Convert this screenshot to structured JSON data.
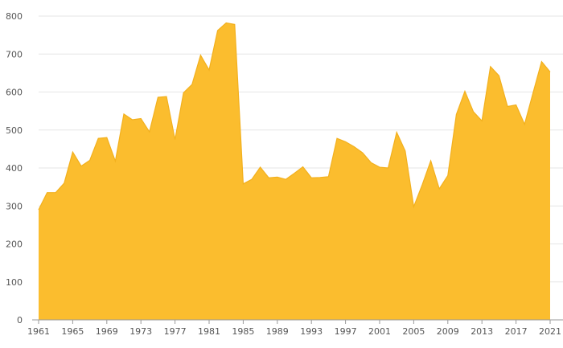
{
  "chart_data": {
    "type": "area",
    "title": "",
    "xlabel": "",
    "ylabel": "",
    "x": [
      1961,
      1962,
      1963,
      1964,
      1965,
      1966,
      1967,
      1968,
      1969,
      1970,
      1971,
      1972,
      1973,
      1974,
      1975,
      1976,
      1977,
      1978,
      1979,
      1980,
      1981,
      1982,
      1983,
      1984,
      1985,
      1986,
      1987,
      1988,
      1989,
      1990,
      1991,
      1992,
      1993,
      1994,
      1995,
      1996,
      1997,
      1998,
      1999,
      2000,
      2001,
      2002,
      2003,
      2004,
      2005,
      2006,
      2007,
      2008,
      2009,
      2010,
      2011,
      2012,
      2013,
      2014,
      2015,
      2016,
      2017,
      2018,
      2019,
      2020,
      2021
    ],
    "series": [
      {
        "values": [
          290,
          335,
          335,
          360,
          442,
          405,
          420,
          478,
          480,
          418,
          542,
          527,
          530,
          495,
          586,
          588,
          475,
          598,
          620,
          697,
          658,
          762,
          782,
          778,
          358,
          370,
          402,
          374,
          376,
          370,
          386,
          403,
          374,
          375,
          377,
          478,
          469,
          456,
          440,
          414,
          402,
          400,
          494,
          445,
          298,
          356,
          419,
          345,
          380,
          541,
          602,
          548,
          524,
          667,
          643,
          562,
          566,
          515,
          598,
          680,
          653
        ]
      }
    ],
    "xticks": [
      "1961",
      "1965",
      "1969",
      "1973",
      "1977",
      "1981",
      "1985",
      "1989",
      "1993",
      "1997",
      "2001",
      "2005",
      "2009",
      "2013",
      "2017",
      "2021"
    ],
    "yticks": [
      "0",
      "100",
      "200",
      "300",
      "400",
      "500",
      "600",
      "700",
      "800"
    ],
    "ylim": [
      0,
      800
    ],
    "xlim": [
      1961,
      2021
    ],
    "grid": true,
    "legend": "none"
  },
  "colors": {
    "area_fill": "#fbbd2e",
    "area_stroke": "#f2b01e",
    "grid": "#e6e6e6",
    "axis": "#9a9a9a",
    "tick_text": "#555555"
  }
}
